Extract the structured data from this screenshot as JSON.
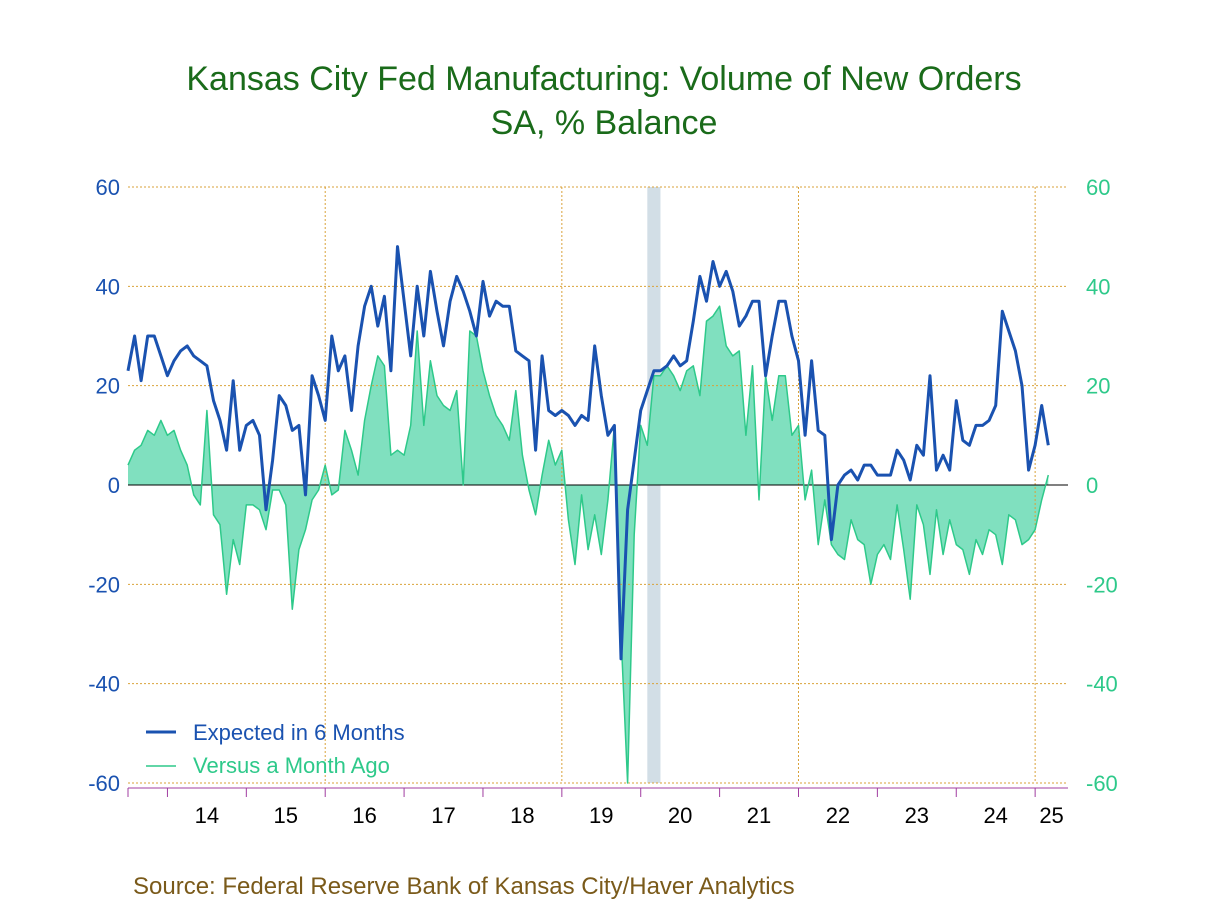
{
  "colors": {
    "title": "#1a6b1a",
    "expected_line": "#1a52b0",
    "month_ago_line": "#2ec98a",
    "month_ago_fill": "#80e0bf",
    "grid": "#d9a23a",
    "recession": "#d2dee6",
    "left_axis_text": "#1a52b0",
    "right_axis_text": "#2ec98a",
    "source_text": "#7a5a1a",
    "x_axis": "#a03ca0"
  },
  "chart_data": {
    "type": "line",
    "title": "Kansas City Fed Manufacturing: Volume of New Orders",
    "subtitle": "SA, % Balance",
    "xlabel": "",
    "ylabel": "",
    "x_start": "2013-07",
    "x_end": "2025-06",
    "ylim": [
      -60,
      60
    ],
    "y_ticks": [
      "60",
      "40",
      "20",
      "0",
      "-20",
      "-40",
      "-60"
    ],
    "y_tick_values": [
      60,
      40,
      20,
      0,
      -20,
      -40,
      -60
    ],
    "x_tick_labels": [
      "14",
      "15",
      "16",
      "17",
      "18",
      "19",
      "20",
      "21",
      "22",
      "23",
      "24",
      "25"
    ],
    "recession": {
      "start": "2020-02",
      "end": "2020-04"
    },
    "grid": true,
    "legend_position": "bottom-left",
    "series": [
      {
        "name": "Expected in 6 Months",
        "type": "line",
        "start": "2013-07",
        "values": [
          23,
          30,
          21,
          30,
          30,
          26,
          22,
          25,
          27,
          28,
          26,
          25,
          24,
          17,
          13,
          7,
          21,
          7,
          12,
          13,
          10,
          -5,
          5,
          18,
          16,
          11,
          12,
          -2,
          22,
          18,
          13,
          30,
          23,
          26,
          15,
          28,
          36,
          40,
          32,
          38,
          23,
          48,
          37,
          26,
          40,
          30,
          43,
          35,
          28,
          37,
          42,
          39,
          35,
          30,
          41,
          34,
          37,
          36,
          36,
          27,
          26,
          25,
          7,
          26,
          15,
          14,
          15,
          14,
          12,
          14,
          13,
          28,
          18,
          10,
          12,
          -35,
          -5,
          5,
          15,
          19,
          23,
          23,
          24,
          26,
          24,
          25,
          33,
          42,
          37,
          45,
          40,
          43,
          39,
          32,
          34,
          37,
          37,
          22,
          30,
          37,
          37,
          30,
          25,
          10,
          25,
          11,
          10,
          -11,
          0,
          2,
          3,
          1,
          4,
          4,
          2,
          2,
          2,
          7,
          5,
          1,
          8,
          6,
          22,
          3,
          6,
          3,
          17,
          9,
          8,
          12,
          12,
          13,
          16,
          35,
          31,
          27,
          20,
          3,
          8,
          16,
          8
        ]
      },
      {
        "name": "Versus a Month Ago",
        "type": "area",
        "start": "2013-07",
        "values": [
          4,
          7,
          8,
          11,
          10,
          13,
          10,
          11,
          7,
          4,
          -2,
          -4,
          15,
          -6,
          -8,
          -22,
          -11,
          -16,
          -4,
          -4,
          -5,
          -9,
          -1,
          -1,
          -4,
          -25,
          -13,
          -9,
          -3,
          -1,
          4,
          -2,
          -1,
          11,
          7,
          2,
          13,
          20,
          26,
          24,
          6,
          7,
          6,
          12,
          31,
          12,
          25,
          18,
          16,
          15,
          19,
          0,
          31,
          30,
          23,
          18,
          14,
          12,
          9,
          19,
          6,
          -1,
          -6,
          2,
          9,
          4,
          7,
          -7,
          -16,
          -2,
          -13,
          -6,
          -14,
          -3,
          12,
          -30,
          -60,
          -10,
          12,
          8,
          22,
          22,
          24,
          22,
          19,
          23,
          24,
          18,
          33,
          34,
          36,
          28,
          26,
          27,
          10,
          24,
          -3,
          22,
          13,
          22,
          22,
          10,
          12,
          -3,
          3,
          -12,
          -3,
          -12,
          -14,
          -15,
          -7,
          -11,
          -12,
          -20,
          -14,
          -12,
          -15,
          -4,
          -13,
          -23,
          -4,
          -8,
          -18,
          -5,
          -14,
          -7,
          -12,
          -13,
          -18,
          -11,
          -14,
          -9,
          -10,
          -16,
          -6,
          -7,
          -12,
          -11,
          -9,
          -3,
          2
        ]
      }
    ]
  },
  "legend": {
    "items": [
      {
        "label": "Expected in 6 Months"
      },
      {
        "label": "Versus a Month Ago"
      }
    ]
  },
  "source": "Source:  Federal Reserve Bank of Kansas City/Haver Analytics"
}
